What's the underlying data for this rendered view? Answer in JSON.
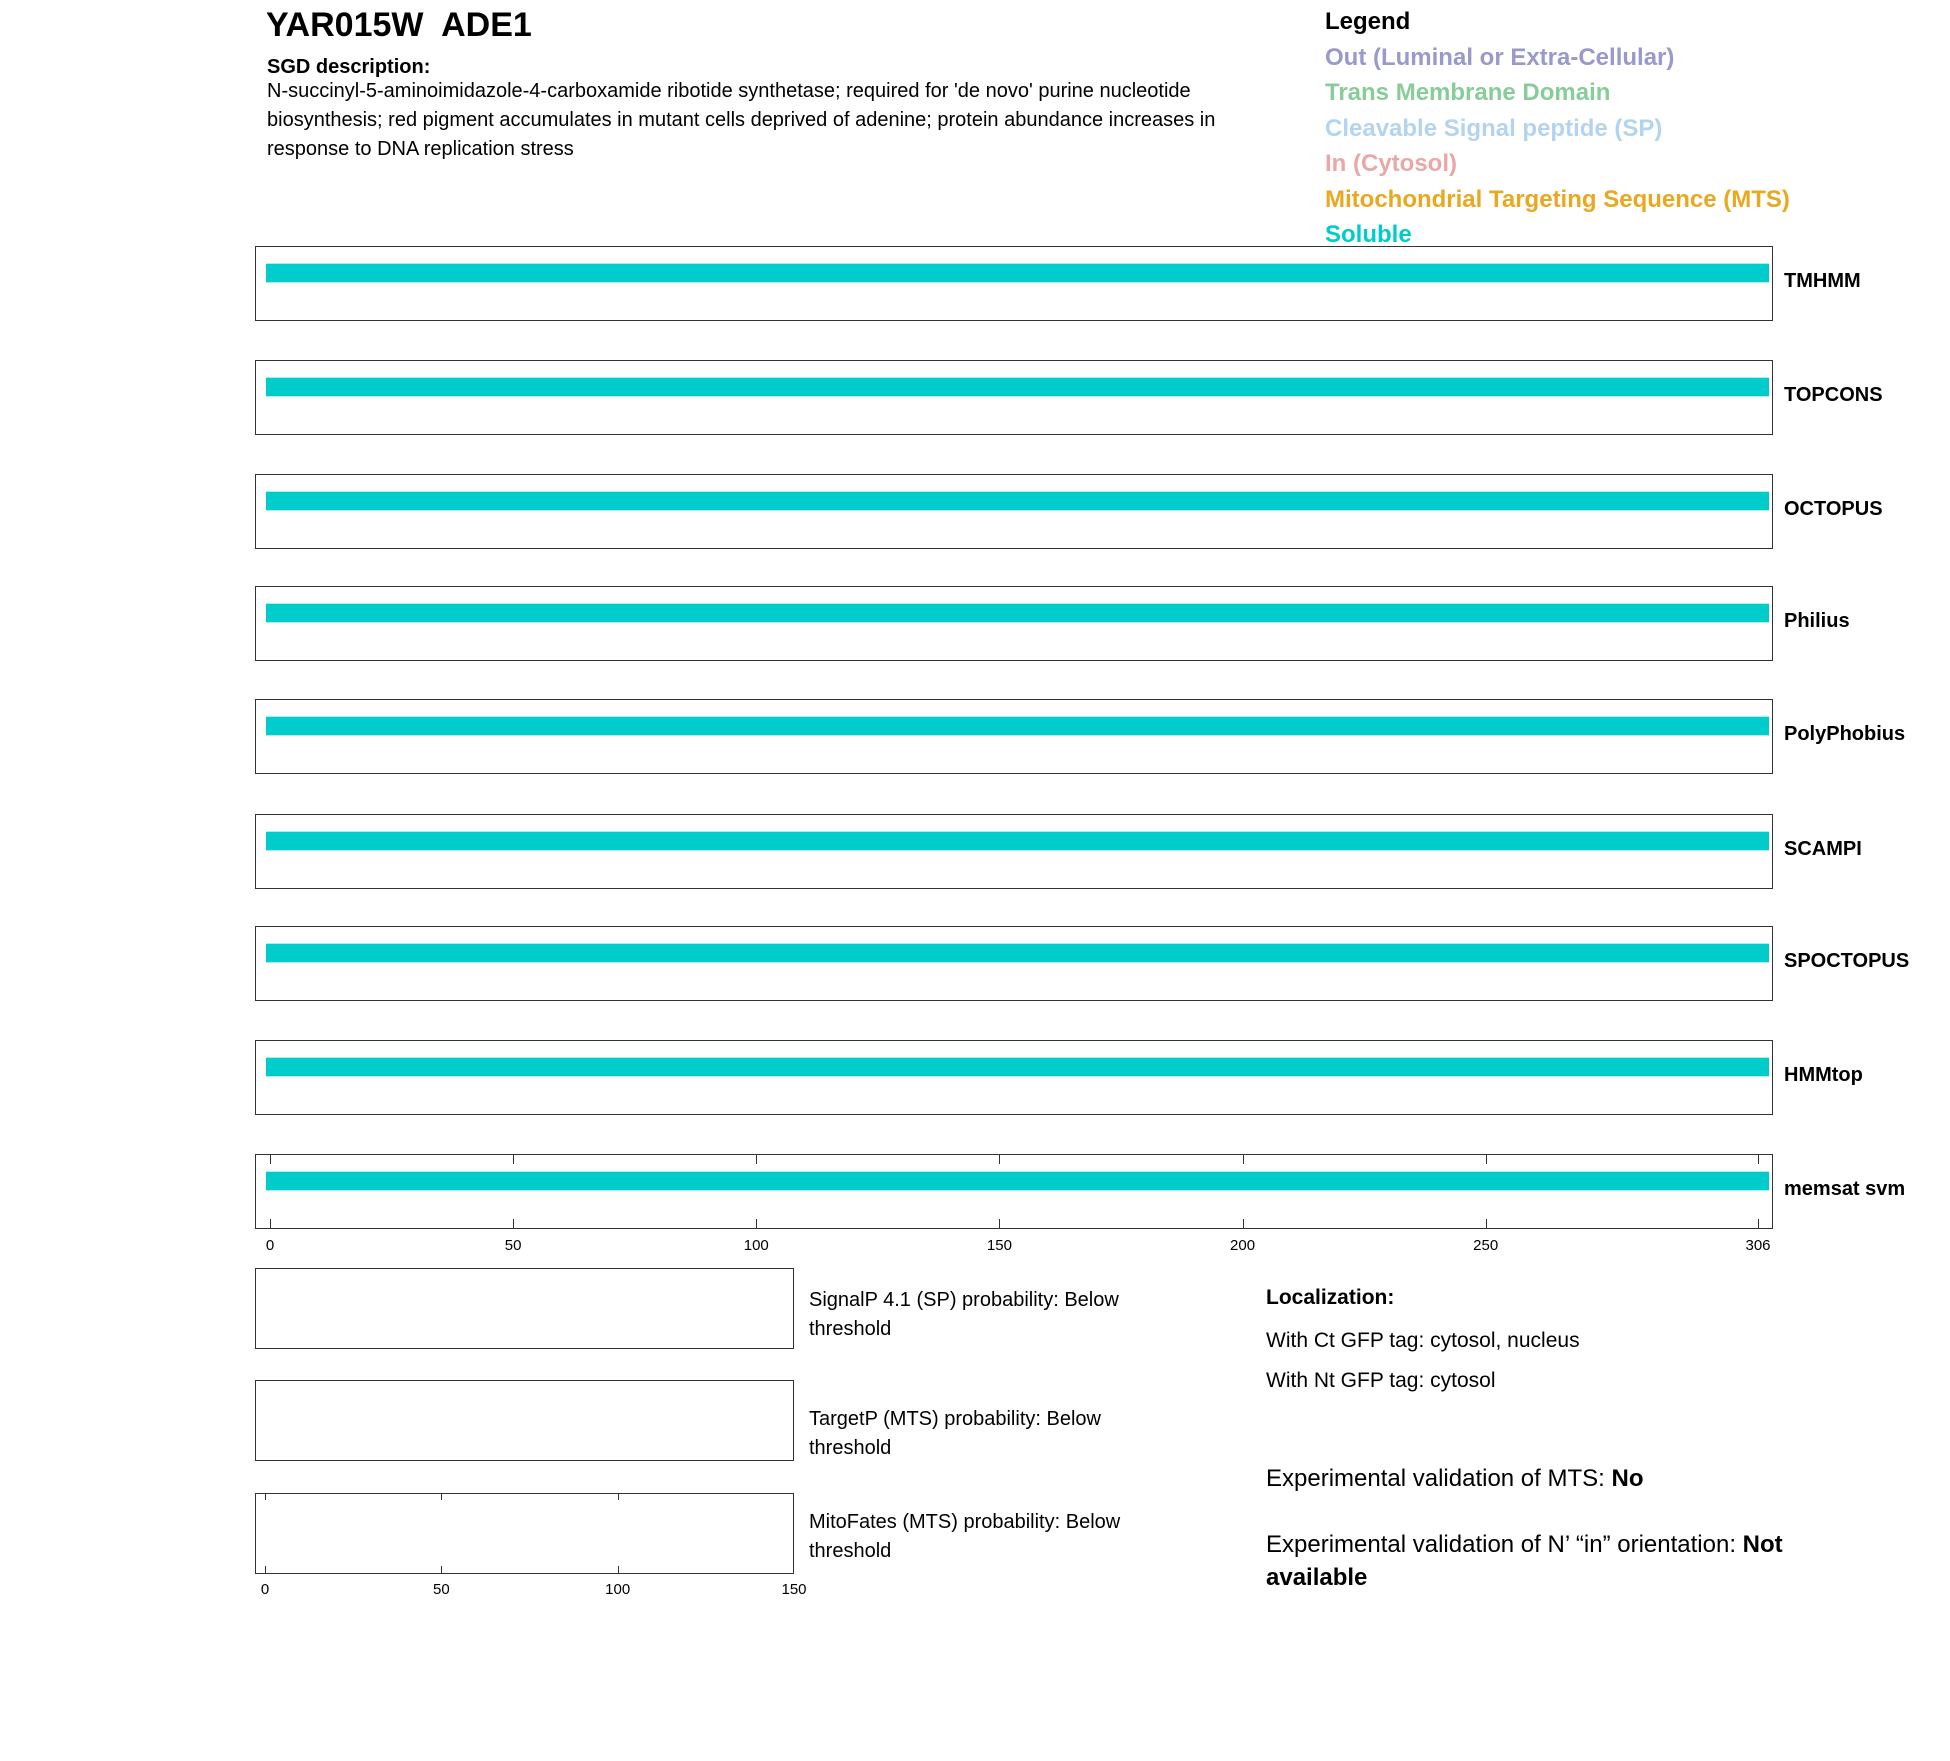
{
  "header": {
    "title": "YAR015W  ADE1",
    "sgd_heading": "SGD description:",
    "sgd_text": "N-succinyl-5-aminoimidazole-4-carboxamide ribotide synthetase; required for 'de novo' purine nucleotide biosynthesis; red pigment accumulates in mutant cells deprived of adenine; protein abundance increases in response to DNA replication stress"
  },
  "legend": {
    "title": "Legend",
    "items": [
      {
        "label": "Out (Luminal or Extra-Cellular)",
        "color": "#9999cc"
      },
      {
        "label": "Trans Membrane Domain",
        "color": "#88cc99"
      },
      {
        "label": "Cleavable Signal peptide (SP)",
        "color": "#b3d4f0"
      },
      {
        "label": "In (Cytosol)",
        "color": "#e8a8a8"
      },
      {
        "label": "Mitochondrial Targeting Sequence (MTS)",
        "color": "#e8a820"
      },
      {
        "label": "Soluble",
        "color": "#00cccc"
      }
    ]
  },
  "chart_data": {
    "type": "bar",
    "xlim": [
      0,
      306
    ],
    "xticks": [
      "0",
      "50",
      "100",
      "150",
      "200",
      "250",
      "306"
    ],
    "tracks": [
      {
        "name": "TMHMM",
        "segments": [
          {
            "start": 1,
            "end": 306,
            "class": "Soluble"
          }
        ]
      },
      {
        "name": "TOPCONS",
        "segments": [
          {
            "start": 1,
            "end": 306,
            "class": "Soluble"
          }
        ]
      },
      {
        "name": "OCTOPUS",
        "segments": [
          {
            "start": 1,
            "end": 306,
            "class": "Soluble"
          }
        ]
      },
      {
        "name": "Philius",
        "segments": [
          {
            "start": 1,
            "end": 306,
            "class": "Soluble"
          }
        ]
      },
      {
        "name": "PolyPhobius",
        "segments": [
          {
            "start": 1,
            "end": 306,
            "class": "Soluble"
          }
        ]
      },
      {
        "name": "SCAMPI",
        "segments": [
          {
            "start": 1,
            "end": 306,
            "class": "Soluble"
          }
        ]
      },
      {
        "name": "SPOCTOPUS",
        "segments": [
          {
            "start": 1,
            "end": 306,
            "class": "Soluble"
          }
        ]
      },
      {
        "name": "HMMtop",
        "segments": [
          {
            "start": 1,
            "end": 306,
            "class": "Soluble"
          }
        ]
      },
      {
        "name": "memsat svm",
        "segments": [
          {
            "start": 1,
            "end": 306,
            "class": "Soluble"
          }
        ]
      }
    ],
    "small_xlim": [
      0,
      150
    ],
    "small_xticks": [
      "0",
      "50",
      "100",
      "150"
    ]
  },
  "predictions": [
    "SignalP 4.1 (SP) probability: Below threshold",
    "TargetP (MTS) probability: Below threshold",
    "MitoFates (MTS) probability: Below threshold"
  ],
  "localization": {
    "heading": "Localization:",
    "ct": "With Ct GFP tag: cytosol, nucleus",
    "nt": "With Nt GFP tag: cytosol"
  },
  "validation": {
    "mts_label": "Experimental validation of MTS: ",
    "mts_value": "No",
    "nin_label": "Experimental validation of N’ “in” orientation: ",
    "nin_value": "Not available"
  }
}
